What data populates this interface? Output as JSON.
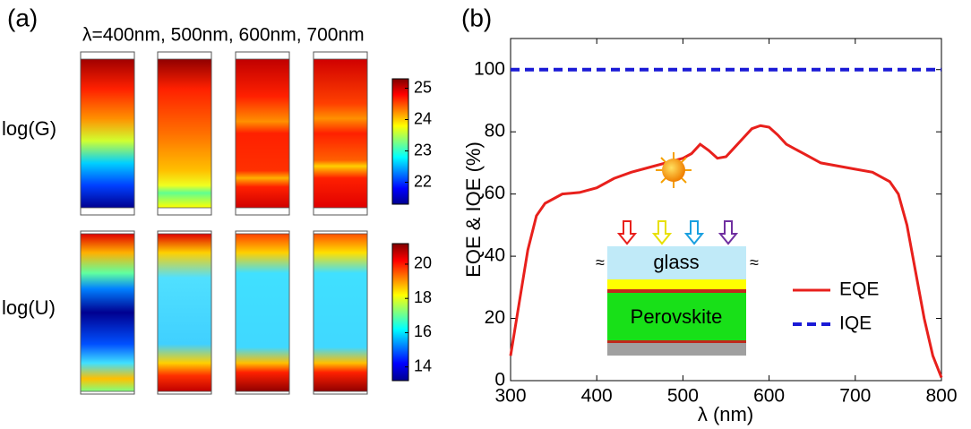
{
  "chart_data": [
    {
      "type": "heatmap",
      "label": "(a)",
      "title": "λ=400nm, 500nm, 600nm, 700nm",
      "rows": [
        {
          "label": "log(G)",
          "colorbar": {
            "lim": [
              21.3,
              25.3
            ],
            "ticks": [
              22,
              23,
              24,
              25
            ]
          }
        },
        {
          "label": "log(U)",
          "colorbar": {
            "lim": [
              13.2,
              21.2
            ],
            "ticks": [
              14,
              16,
              18,
              20
            ]
          }
        }
      ]
    },
    {
      "type": "line",
      "label": "(b)",
      "xlabel": "λ (nm)",
      "ylabel": "EQE & IQE (%)",
      "xlim": [
        300,
        800
      ],
      "xticks": [
        300,
        400,
        500,
        600,
        700,
        800
      ],
      "ylim": [
        0,
        110
      ],
      "yticks": [
        0,
        20,
        40,
        60,
        80,
        100
      ],
      "legend": "lower right",
      "series": [
        {
          "name": "EQE",
          "color": "#e8201c",
          "linestyle": "solid",
          "x": [
            300,
            310,
            320,
            330,
            340,
            360,
            380,
            400,
            420,
            440,
            460,
            480,
            500,
            510,
            520,
            530,
            540,
            550,
            560,
            570,
            580,
            590,
            600,
            610,
            620,
            640,
            660,
            680,
            700,
            720,
            740,
            750,
            760,
            770,
            780,
            790,
            800
          ],
          "values": [
            8,
            25,
            42,
            53,
            57,
            60,
            60.5,
            62,
            65,
            67,
            68.5,
            70,
            71.5,
            73,
            76,
            74,
            71.5,
            72,
            75,
            78,
            81,
            82,
            81.5,
            79,
            76,
            73,
            70,
            69,
            68,
            67,
            64,
            60,
            50,
            35,
            20,
            8,
            1
          ]
        },
        {
          "name": "IQE",
          "color": "#1a1ad6",
          "linestyle": "dashed",
          "x": [
            300,
            800
          ],
          "values": [
            100,
            100
          ]
        }
      ],
      "annotations": [
        "glass",
        "Perovskite",
        "≈",
        "≈"
      ]
    }
  ]
}
